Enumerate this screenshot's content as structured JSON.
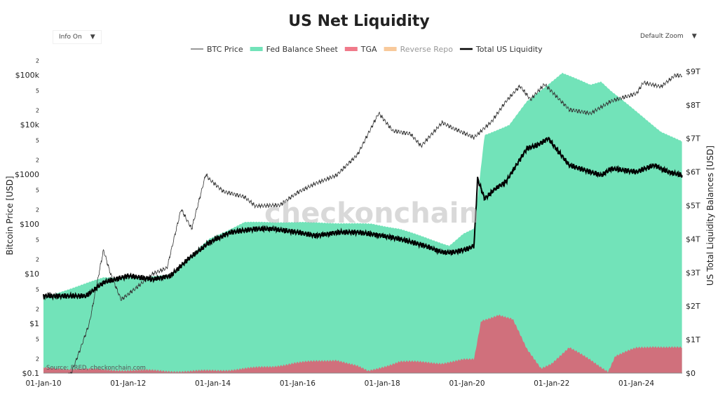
{
  "title": "US Net Liquidity",
  "controls": {
    "info": "Info On",
    "zoom": "Default Zoom",
    "arrow": "▼"
  },
  "watermark": "checkonchain",
  "source": "Source: FRED, checkonchain.com",
  "chart_data": {
    "type": "area",
    "title": "US Net Liquidity",
    "ylabel_left": "Bitcoin Price [USD]",
    "ylabel_right": "US Total Liquidity Balances [USD]",
    "xlim": [
      "2010-01",
      "2025-02"
    ],
    "ylim_left": [
      0.1,
      210000
    ],
    "left_scale": "log",
    "ylim_right": [
      0,
      9.5
    ],
    "right_unit": "trillions USD",
    "x_ticks": [
      "01-Jan-10",
      "01-Jan-12",
      "01-Jan-14",
      "01-Jan-16",
      "01-Jan-18",
      "01-Jan-20",
      "01-Jan-22",
      "01-Jan-24"
    ],
    "left_ticks": [
      {
        "v": 200000,
        "l": "2"
      },
      {
        "v": 100000,
        "l": "$100k"
      },
      {
        "v": 50000,
        "l": "5"
      },
      {
        "v": 20000,
        "l": "2"
      },
      {
        "v": 10000,
        "l": "$10k"
      },
      {
        "v": 5000,
        "l": "5"
      },
      {
        "v": 2000,
        "l": "2"
      },
      {
        "v": 1000,
        "l": "$1000"
      },
      {
        "v": 500,
        "l": "5"
      },
      {
        "v": 200,
        "l": "2"
      },
      {
        "v": 100,
        "l": "$100"
      },
      {
        "v": 50,
        "l": "5"
      },
      {
        "v": 20,
        "l": "2"
      },
      {
        "v": 10,
        "l": "$10"
      },
      {
        "v": 5,
        "l": "5"
      },
      {
        "v": 2,
        "l": "2"
      },
      {
        "v": 1,
        "l": "$1"
      },
      {
        "v": 0.5,
        "l": "5"
      },
      {
        "v": 0.2,
        "l": "2"
      },
      {
        "v": 0.1,
        "l": "$0.1"
      }
    ],
    "right_ticks": [
      {
        "v": 0,
        "l": "$0"
      },
      {
        "v": 1,
        "l": "$1T"
      },
      {
        "v": 2,
        "l": "$2T"
      },
      {
        "v": 3,
        "l": "$3T"
      },
      {
        "v": 4,
        "l": "$4T"
      },
      {
        "v": 5,
        "l": "$5T"
      },
      {
        "v": 6,
        "l": "$6T"
      },
      {
        "v": 7,
        "l": "$7T"
      },
      {
        "v": 8,
        "l": "$8T"
      },
      {
        "v": 9,
        "l": "$9T"
      }
    ],
    "legend_position": "top",
    "series": [
      {
        "name": "BTC Price",
        "axis": "left",
        "color": "#333333",
        "kind": "line",
        "visible": true,
        "x": [
          "2010-08",
          "2010-11",
          "2011-02",
          "2011-06",
          "2011-08",
          "2011-11",
          "2012-03",
          "2012-08",
          "2012-12",
          "2013-04",
          "2013-07",
          "2013-11",
          "2013-12",
          "2014-04",
          "2014-10",
          "2015-01",
          "2015-08",
          "2016-01",
          "2016-06",
          "2016-12",
          "2017-06",
          "2017-12",
          "2018-04",
          "2018-09",
          "2018-12",
          "2019-06",
          "2019-09",
          "2020-03",
          "2020-08",
          "2020-12",
          "2021-04",
          "2021-07",
          "2021-11",
          "2022-06",
          "2022-12",
          "2023-06",
          "2024-01",
          "2024-03",
          "2024-08",
          "2024-12",
          "2025-02"
        ],
        "y": [
          0.07,
          0.25,
          1,
          30,
          10,
          3,
          5,
          10,
          13,
          200,
          80,
          1000,
          800,
          450,
          350,
          230,
          240,
          430,
          650,
          950,
          2500,
          17000,
          7500,
          6500,
          3700,
          11000,
          8500,
          5500,
          11500,
          29000,
          60000,
          32000,
          65000,
          20000,
          16800,
          30000,
          42000,
          70000,
          58000,
          98000,
          97000
        ]
      },
      {
        "name": "Fed Balance Sheet",
        "axis": "right",
        "color": "#72e3b9",
        "kind": "area",
        "visible": true,
        "x": [
          "2010-01",
          "2011-06",
          "2012-06",
          "2013-01",
          "2013-12",
          "2014-10",
          "2016-01",
          "2017-10",
          "2018-06",
          "2019-08",
          "2019-12",
          "2020-03",
          "2020-06",
          "2021-01",
          "2021-06",
          "2022-04",
          "2022-12",
          "2023-03",
          "2023-06",
          "2024-01",
          "2024-08",
          "2025-02"
        ],
        "y": [
          2.25,
          2.85,
          2.85,
          2.95,
          4.0,
          4.5,
          4.5,
          4.45,
          4.3,
          3.8,
          4.15,
          4.3,
          7.1,
          7.4,
          8.1,
          8.95,
          8.6,
          8.7,
          8.4,
          7.8,
          7.2,
          6.9
        ]
      },
      {
        "name": "TGA",
        "axis": "right",
        "color": "#f07a8a",
        "kind": "area",
        "visible": true,
        "x": [
          "2010-01",
          "2011-06",
          "2012-06",
          "2013-06",
          "2014-06",
          "2015-06",
          "2015-12",
          "2016-06",
          "2016-12",
          "2017-06",
          "2017-09",
          "2018-06",
          "2019-06",
          "2019-12",
          "2020-03",
          "2020-05",
          "2020-10",
          "2021-02",
          "2021-06",
          "2021-10",
          "2022-01",
          "2022-06",
          "2022-12",
          "2023-05",
          "2023-07",
          "2024-01",
          "2024-06",
          "2025-02"
        ],
        "y": [
          0.15,
          0.1,
          0.08,
          0.05,
          0.1,
          0.2,
          0.3,
          0.35,
          0.4,
          0.2,
          0.05,
          0.35,
          0.3,
          0.4,
          0.4,
          1.55,
          1.75,
          1.6,
          0.7,
          0.15,
          0.3,
          0.75,
          0.4,
          0.05,
          0.5,
          0.75,
          0.8,
          0.75
        ]
      },
      {
        "name": "Reverse Repo",
        "axis": "right",
        "color": "#f8c99b",
        "kind": "area",
        "visible": false
      },
      {
        "name": "Total US Liquidity",
        "axis": "right",
        "color": "#000000",
        "kind": "line",
        "visible": true,
        "x": [
          "2010-01",
          "2011-01",
          "2011-06",
          "2012-01",
          "2012-08",
          "2013-01",
          "2013-06",
          "2013-12",
          "2014-06",
          "2015-01",
          "2015-06",
          "2016-01",
          "2016-06",
          "2017-01",
          "2017-06",
          "2018-01",
          "2018-06",
          "2019-01",
          "2019-06",
          "2019-09",
          "2020-01",
          "2020-03",
          "2020-04",
          "2020-06",
          "2020-09",
          "2020-12",
          "2021-03",
          "2021-06",
          "2021-09",
          "2021-12",
          "2022-03",
          "2022-06",
          "2022-12",
          "2023-03",
          "2023-06",
          "2024-01",
          "2024-06",
          "2024-10",
          "2025-02"
        ],
        "y": [
          2.3,
          2.3,
          2.7,
          2.9,
          2.8,
          2.9,
          3.4,
          3.9,
          4.2,
          4.3,
          4.3,
          4.2,
          4.1,
          4.2,
          4.2,
          4.1,
          4.0,
          3.8,
          3.6,
          3.6,
          3.7,
          3.8,
          5.8,
          5.2,
          5.5,
          5.7,
          6.2,
          6.7,
          6.8,
          7.0,
          6.6,
          6.2,
          6.0,
          5.9,
          6.1,
          6.0,
          6.2,
          6.0,
          5.9
        ]
      }
    ]
  }
}
